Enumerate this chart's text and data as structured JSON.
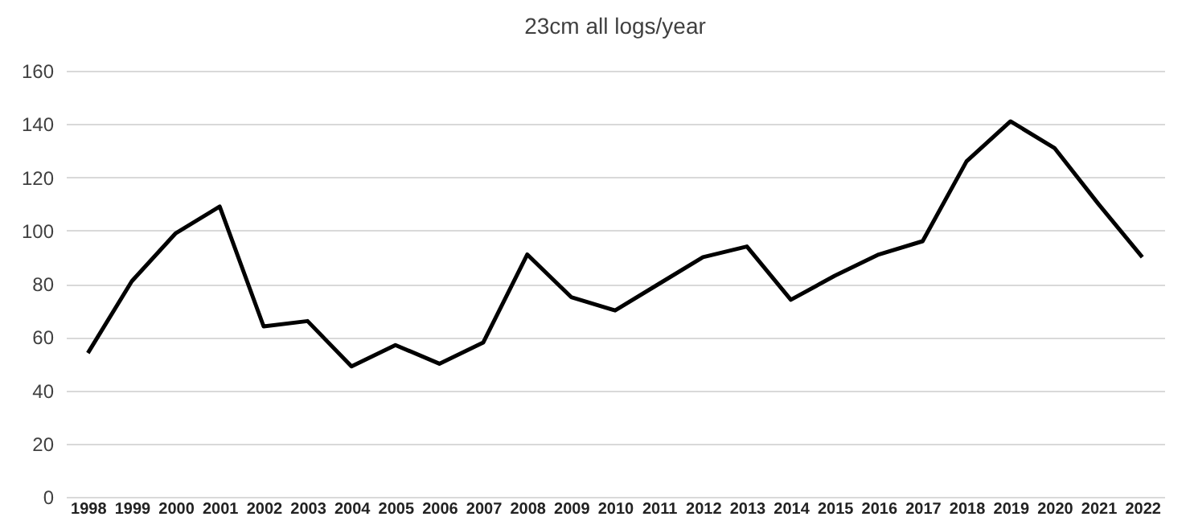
{
  "chart_data": {
    "type": "line",
    "title": "23cm all logs/year",
    "categories": [
      "1998",
      "1999",
      "2000",
      "2001",
      "2002",
      "2003",
      "2004",
      "2005",
      "2006",
      "2007",
      "2008",
      "2009",
      "2010",
      "2011",
      "2012",
      "2013",
      "2014",
      "2015",
      "2016",
      "2017",
      "2018",
      "2019",
      "2020",
      "2021",
      "2022"
    ],
    "series": [
      {
        "color": "#000000",
        "values": [
          54,
          81,
          99,
          109,
          64,
          66,
          49,
          57,
          50,
          58,
          91,
          75,
          70,
          80,
          90,
          94,
          74,
          83,
          91,
          96,
          126,
          141,
          131,
          110,
          90
        ]
      }
    ],
    "ylim": [
      0,
      160
    ],
    "yticks": [
      0,
      20,
      40,
      60,
      80,
      100,
      120,
      140,
      160
    ],
    "grid": "y",
    "marker": "none",
    "line_style": "solid"
  }
}
